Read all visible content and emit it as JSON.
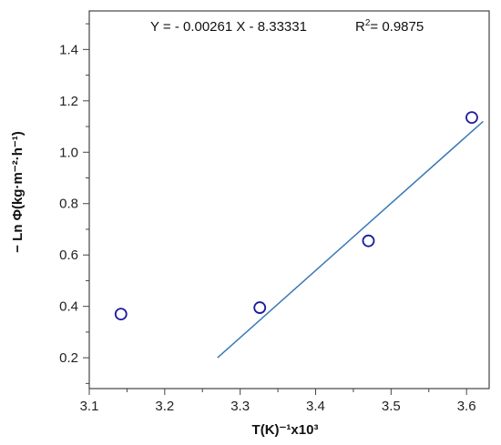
{
  "chart_data": {
    "type": "scatter",
    "xlabel": "T(K)⁻¹x10³",
    "ylabel": "− Ln Φ(kg·m⁻²·h⁻¹)",
    "xlim": [
      3.1,
      3.63
    ],
    "ylim": [
      0.08,
      1.55
    ],
    "xticks": [
      3.1,
      3.2,
      3.3,
      3.4,
      3.5,
      3.6
    ],
    "xtick_labels": [
      "3.1",
      "3.2",
      "3.3",
      "3.4",
      "3.5",
      "3.6"
    ],
    "yticks": [
      0.2,
      0.4,
      0.6,
      0.8,
      1.0,
      1.2,
      1.4
    ],
    "ytick_labels": [
      "0.2",
      "0.4",
      "0.6",
      "0.8",
      "1.0",
      "1.2",
      "1.4"
    ],
    "points": [
      {
        "x": 3.142,
        "y": 0.37
      },
      {
        "x": 3.326,
        "y": 0.395
      },
      {
        "x": 3.47,
        "y": 0.655
      },
      {
        "x": 3.607,
        "y": 1.135
      }
    ],
    "fit_line": {
      "x": [
        3.27,
        3.622
      ],
      "y": [
        0.2,
        1.12
      ]
    },
    "annotation": {
      "equation": "Y = - 0.00261 X - 8.33331",
      "r2_base": "R",
      "r2_sup": "2",
      "r2_rest": "= 0.9875"
    },
    "grid": false,
    "colors": {
      "points": "#1c1c9c",
      "fit_line": "#3a78b8",
      "axes": "#444444"
    }
  }
}
